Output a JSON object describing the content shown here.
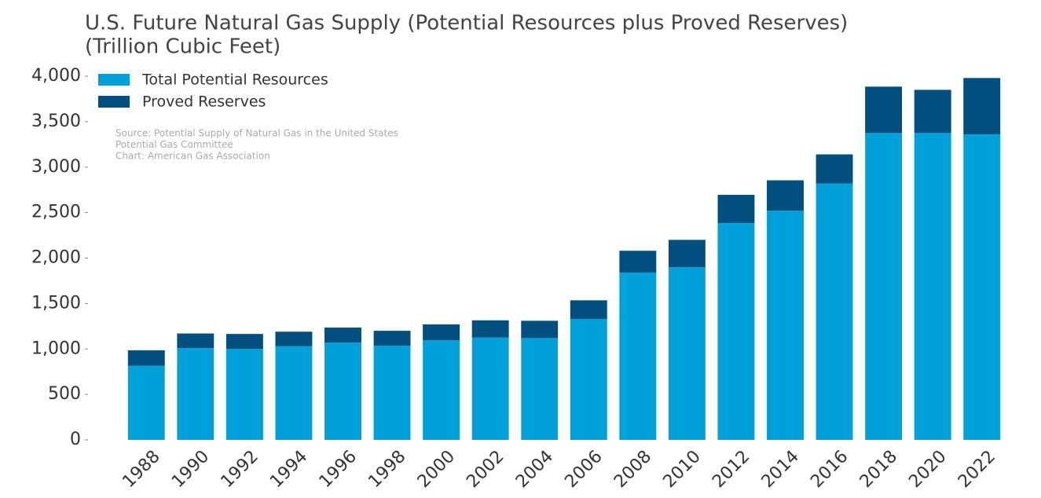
{
  "chart_data": {
    "type": "stacked_bar",
    "title": "U.S. Future Natural Gas Supply (Potential Resources plus Proved Reserves)",
    "subtitle": "(Trillion Cubic Feet)",
    "annotations": [
      "Source: Potential Supply of Natural Gas in the United States",
      "Potential Gas Committee",
      "Chart: American Gas Association"
    ],
    "categories": [
      "1988",
      "1990",
      "1992",
      "1994",
      "1996",
      "1998",
      "2000",
      "2002",
      "2004",
      "2006",
      "2008",
      "2010",
      "2012",
      "2014",
      "2016",
      "2018",
      "2020",
      "2022"
    ],
    "series": [
      {
        "name": "Total Potential Resources",
        "color": "#00a0db",
        "values": [
          815,
          1010,
          1000,
          1030,
          1070,
          1035,
          1095,
          1125,
          1120,
          1330,
          1840,
          1900,
          2385,
          2520,
          2820,
          3375,
          3375,
          3360
        ]
      },
      {
        "name": "Proved Reserves",
        "color": "#004f7f",
        "values": [
          170,
          160,
          165,
          160,
          165,
          165,
          175,
          190,
          190,
          205,
          240,
          300,
          310,
          335,
          320,
          510,
          475,
          620
        ]
      }
    ],
    "ylim": [
      0,
      4000
    ],
    "yticks": [
      {
        "value": 0,
        "label": "0"
      },
      {
        "value": 500,
        "label": "500"
      },
      {
        "value": 1000,
        "label": "1,000"
      },
      {
        "value": 1500,
        "label": "1,500"
      },
      {
        "value": 2000,
        "label": "2,000"
      },
      {
        "value": 2500,
        "label": "2,500"
      },
      {
        "value": 3000,
        "label": "3,000"
      },
      {
        "value": 3500,
        "label": "3,500"
      },
      {
        "value": 4000,
        "label": "4,000"
      }
    ],
    "legend": "upper left",
    "grid": false
  }
}
